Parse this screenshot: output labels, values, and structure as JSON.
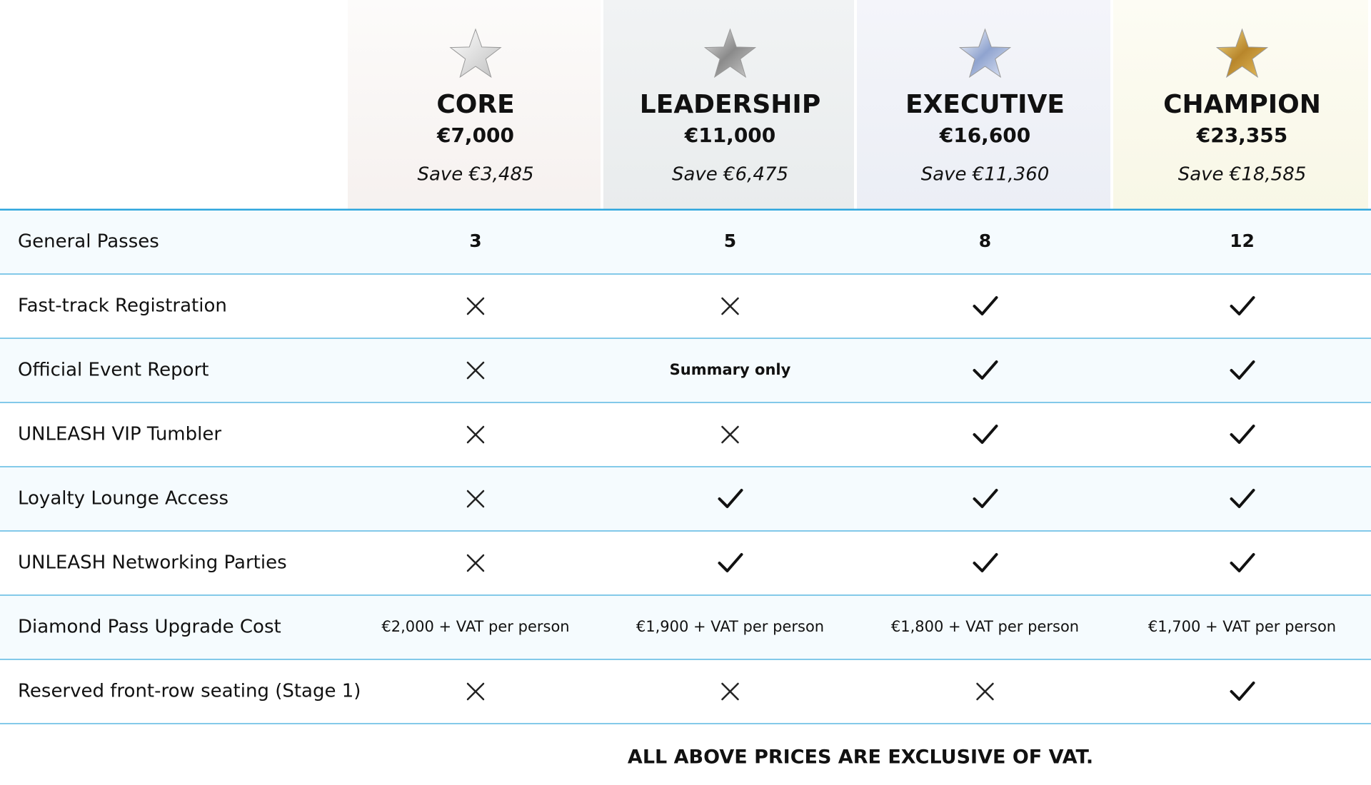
{
  "tiers": [
    {
      "name": "CORE",
      "price": "€7,000",
      "save": "Save €3,485"
    },
    {
      "name": "LEADERSHIP",
      "price": "€11,000",
      "save": "Save €6,475"
    },
    {
      "name": "EXECUTIVE",
      "price": "€16,600",
      "save": "Save €11,360"
    },
    {
      "name": "CHAMPION",
      "price": "€23,355",
      "save": "Save €18,585"
    }
  ],
  "rows": [
    {
      "label": "General Passes",
      "cells": [
        "3",
        "5",
        "8",
        "12"
      ]
    },
    {
      "label": "Fast-track Registration",
      "cells": [
        false,
        false,
        true,
        true
      ]
    },
    {
      "label": "Official Event Report",
      "cells": [
        false,
        "Summary only",
        true,
        true
      ]
    },
    {
      "label": "UNLEASH VIP Tumbler",
      "cells": [
        false,
        false,
        true,
        true
      ]
    },
    {
      "label": "Loyalty Lounge Access",
      "cells": [
        false,
        true,
        true,
        true
      ]
    },
    {
      "label": "UNLEASH Networking Parties",
      "cells": [
        false,
        true,
        true,
        true
      ]
    },
    {
      "label": "Diamond Pass Upgrade Cost",
      "cells": [
        "€2,000 + VAT per person",
        "€1,900 + VAT per person",
        "€1,800 + VAT per person",
        "€1,700 + VAT per person"
      ]
    },
    {
      "label": "Reserved front-row seating (Stage 1)",
      "cells": [
        false,
        false,
        false,
        true
      ]
    }
  ],
  "footer": "ALL ABOVE PRICES ARE EXCLUSIVE OF VAT."
}
